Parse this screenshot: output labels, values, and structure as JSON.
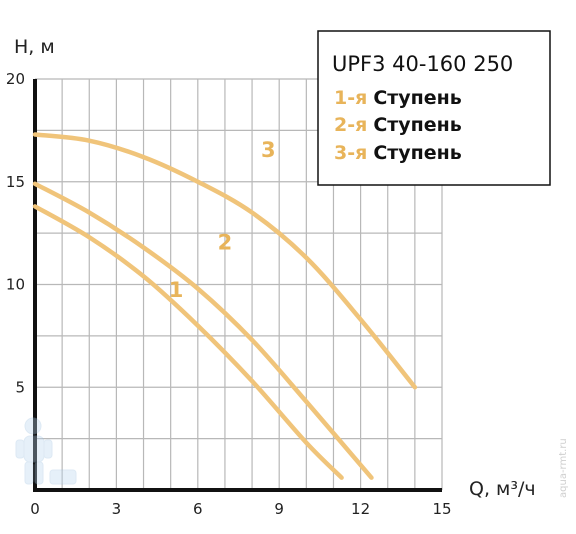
{
  "chart_data": {
    "type": "line",
    "xlabel": "Q, м³/ч",
    "ylabel": "H, м",
    "xlim": [
      0,
      15
    ],
    "ylim": [
      0,
      20
    ],
    "x_ticks": [
      "0",
      "3",
      "6",
      "9",
      "12",
      "15"
    ],
    "y_ticks": [
      "5",
      "10",
      "15",
      "20"
    ],
    "grid": true,
    "legend": {
      "title": "UPF3 40-160 250",
      "entries": [
        {
          "num": "1-я",
          "word": "Ступень"
        },
        {
          "num": "2-я",
          "word": "Ступень"
        },
        {
          "num": "3-я",
          "word": "Ступень"
        }
      ],
      "placement": "top-right"
    },
    "series": [
      {
        "label": "1",
        "x": [
          0,
          2,
          4,
          6,
          8,
          10,
          11.3
        ],
        "y": [
          13.8,
          12.3,
          10.4,
          8.0,
          5.3,
          2.3,
          0.6
        ]
      },
      {
        "label": "2",
        "x": [
          0,
          2,
          4,
          6,
          8,
          10,
          12.4
        ],
        "y": [
          14.9,
          13.5,
          11.8,
          9.8,
          7.3,
          4.3,
          0.6
        ]
      },
      {
        "label": "3",
        "x": [
          0,
          2,
          4,
          6,
          8,
          10,
          12,
          14
        ],
        "y": [
          17.3,
          17.0,
          16.2,
          15.0,
          13.5,
          11.3,
          8.3,
          5.0
        ]
      }
    ],
    "curve_color": "#f0c47a",
    "label_color": "#e8b45a"
  },
  "watermark": "aqua-rmt.ru"
}
